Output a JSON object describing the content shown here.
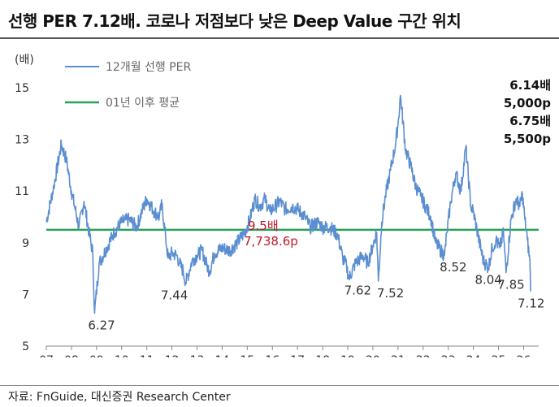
{
  "title": "선행 PER 7.12배. 코로나 저점보다 낮은 Deep Value 구간 위치",
  "source": "자료: FnGuide, 대신증권 Research Center",
  "colors": {
    "series": "#5b8ed0",
    "average": "#2aa05a",
    "avg_text": "#c0182b",
    "axis": "#888888"
  },
  "right_notes": [
    "6.14배",
    "5,000p",
    "6.75배",
    "5,500p"
  ],
  "chart_data": {
    "type": "line",
    "title": "선행 PER 7.12배. 코로나 저점보다 낮은 Deep Value 구간 위치",
    "ylabel": "(배)",
    "xlabel": "",
    "ylim": [
      5,
      15
    ],
    "yticks": [
      5,
      7,
      9,
      11,
      13,
      15
    ],
    "xlim": [
      2007,
      2026.6
    ],
    "xticks": [
      "07",
      "08",
      "09",
      "10",
      "11",
      "12",
      "13",
      "14",
      "15",
      "16",
      "17",
      "18",
      "19",
      "20",
      "21",
      "22",
      "23",
      "24",
      "25",
      "26"
    ],
    "legend_position": "top-left",
    "series": [
      {
        "name": "12개월 선행 PER",
        "type": "line",
        "x": [
          2007.0,
          2007.3,
          2007.6,
          2007.8,
          2008.0,
          2008.3,
          2008.5,
          2008.7,
          2008.85,
          2008.92,
          2009.1,
          2009.4,
          2009.7,
          2010.0,
          2010.3,
          2010.6,
          2010.8,
          2011.0,
          2011.3,
          2011.5,
          2011.6,
          2011.75,
          2011.85,
          2012.0,
          2012.2,
          2012.3,
          2012.45,
          2012.55,
          2012.8,
          2013.0,
          2013.2,
          2013.4,
          2013.5,
          2013.7,
          2014.0,
          2014.3,
          2014.6,
          2014.9,
          2015.1,
          2015.3,
          2015.5,
          2015.7,
          2015.9,
          2016.1,
          2016.3,
          2016.5,
          2016.8,
          2017.0,
          2017.3,
          2017.5,
          2017.8,
          2018.0,
          2018.3,
          2018.6,
          2018.8,
          2018.95,
          2019.05,
          2019.3,
          2019.6,
          2019.8,
          2020.0,
          2020.15,
          2020.22,
          2020.35,
          2020.5,
          2020.7,
          2020.9,
          2021.0,
          2021.1,
          2021.3,
          2021.5,
          2021.7,
          2021.9,
          2022.1,
          2022.3,
          2022.5,
          2022.7,
          2022.85,
          2022.95,
          2023.1,
          2023.3,
          2023.5,
          2023.7,
          2023.9,
          2024.0,
          2024.2,
          2024.4,
          2024.6,
          2024.75,
          2024.9,
          2025.05,
          2025.2,
          2025.3,
          2025.5,
          2025.7,
          2025.85,
          2025.95,
          2026.05,
          2026.15,
          2026.25,
          2026.28
        ],
        "y": [
          9.8,
          11.2,
          12.8,
          12.2,
          11.0,
          9.6,
          10.6,
          9.4,
          8.6,
          6.27,
          8.2,
          8.8,
          9.4,
          9.8,
          9.9,
          9.6,
          10.2,
          10.7,
          10.2,
          10.0,
          10.5,
          9.2,
          8.4,
          8.6,
          8.5,
          8.2,
          7.9,
          7.44,
          8.3,
          8.5,
          8.7,
          8.1,
          7.9,
          8.6,
          8.8,
          8.7,
          9.0,
          9.4,
          9.9,
          10.7,
          10.4,
          10.7,
          10.2,
          10.4,
          10.6,
          10.3,
          10.4,
          10.3,
          10.0,
          9.6,
          9.8,
          9.6,
          9.6,
          9.3,
          8.4,
          8.1,
          7.62,
          8.2,
          8.5,
          8.2,
          8.9,
          9.4,
          7.52,
          9.8,
          10.8,
          11.8,
          12.8,
          13.6,
          14.7,
          12.6,
          12.0,
          11.2,
          10.8,
          10.4,
          10.0,
          9.0,
          8.7,
          8.52,
          9.4,
          10.6,
          11.7,
          11.0,
          12.7,
          10.4,
          10.2,
          9.2,
          8.3,
          8.04,
          8.8,
          9.1,
          8.8,
          9.4,
          7.85,
          9.9,
          10.7,
          10.4,
          10.9,
          9.9,
          9.1,
          8.3,
          7.12
        ]
      },
      {
        "name": "01년 이후 평균",
        "type": "hline",
        "value": 9.5
      }
    ],
    "annotations": [
      {
        "label": "6.27",
        "x": 2009.2,
        "y": 6.27,
        "anchor": "below"
      },
      {
        "label": "7.44",
        "x": 2012.1,
        "y": 7.44,
        "anchor": "below"
      },
      {
        "label": "7.62",
        "x": 2019.4,
        "y": 7.62,
        "anchor": "below"
      },
      {
        "label": "7.52",
        "x": 2020.7,
        "y": 7.52,
        "anchor": "below"
      },
      {
        "label": "8.52",
        "x": 2023.2,
        "y": 8.52,
        "anchor": "below"
      },
      {
        "label": "8.04",
        "x": 2024.6,
        "y": 8.04,
        "anchor": "below"
      },
      {
        "label": "7.85",
        "x": 2025.5,
        "y": 7.85,
        "anchor": "below"
      },
      {
        "label": "7.12",
        "x": 2026.3,
        "y": 7.12,
        "anchor": "below"
      }
    ],
    "average_label": [
      "9.5배",
      "7,738.6p"
    ]
  }
}
